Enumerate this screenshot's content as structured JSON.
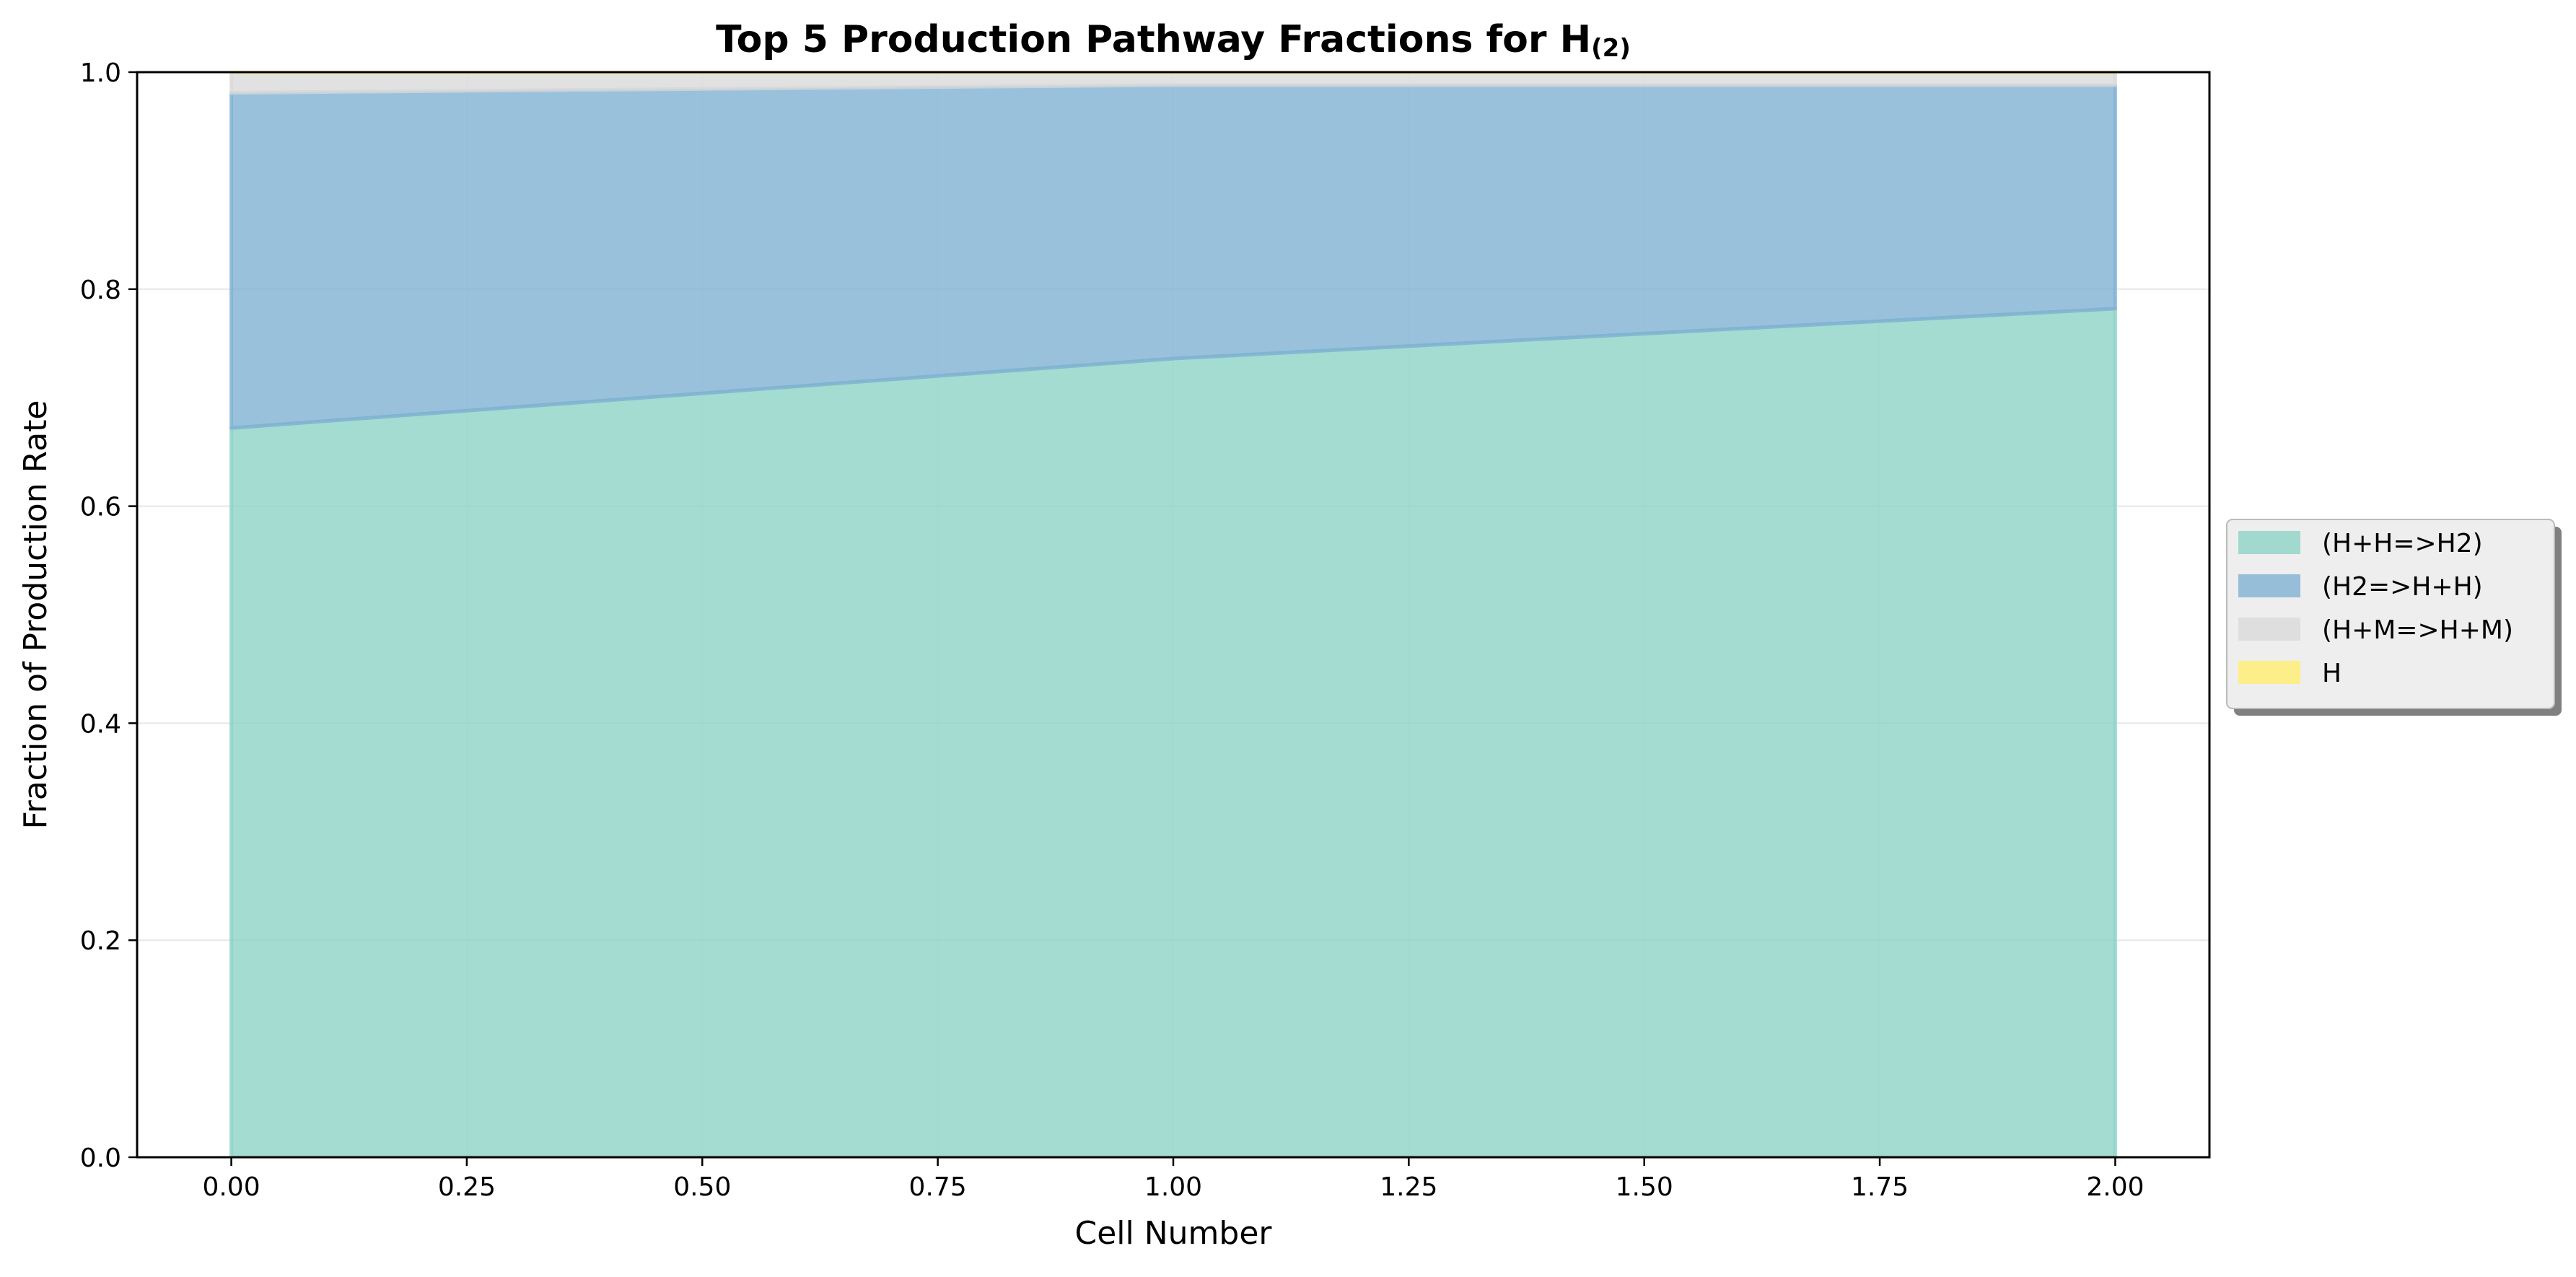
{
  "chart_data": {
    "type": "area",
    "stacked": true,
    "title": "Top 5 Production Pathway Fractions for H",
    "title_subscript": "(2)",
    "xlabel": "Cell Number",
    "ylabel": "Fraction of Production Rate",
    "xlim": [
      -0.1,
      2.1
    ],
    "ylim": [
      0.0,
      1.0
    ],
    "x": [
      0,
      1,
      2
    ],
    "x_ticks": [
      0.0,
      0.25,
      0.5,
      0.75,
      1.0,
      1.25,
      1.5,
      1.75,
      2.0
    ],
    "x_tick_labels": [
      "0.00",
      "0.25",
      "0.50",
      "0.75",
      "1.00",
      "1.25",
      "1.50",
      "1.75",
      "2.00"
    ],
    "y_ticks": [
      0.0,
      0.2,
      0.4,
      0.6,
      0.8,
      1.0
    ],
    "y_tick_labels": [
      "0.0",
      "0.2",
      "0.4",
      "0.6",
      "0.8",
      "1.0"
    ],
    "grid": "horizontal",
    "legend_placement": "center-right-outside",
    "series": [
      {
        "name": "(H+H=>H2)",
        "values": [
          0.672,
          0.736,
          0.782
        ],
        "color": "#8dd3c7"
      },
      {
        "name": "(H2=>H+H)",
        "values": [
          0.309,
          0.252,
          0.206
        ],
        "color": "#80b1d3"
      },
      {
        "name": "(H+M=>H+M)",
        "values": [
          0.019,
          0.012,
          0.012
        ],
        "color": "#d9d9d9"
      },
      {
        "name": "H",
        "values": [
          0.0,
          0.0,
          0.0
        ],
        "color": "#ffed6f"
      }
    ]
  }
}
